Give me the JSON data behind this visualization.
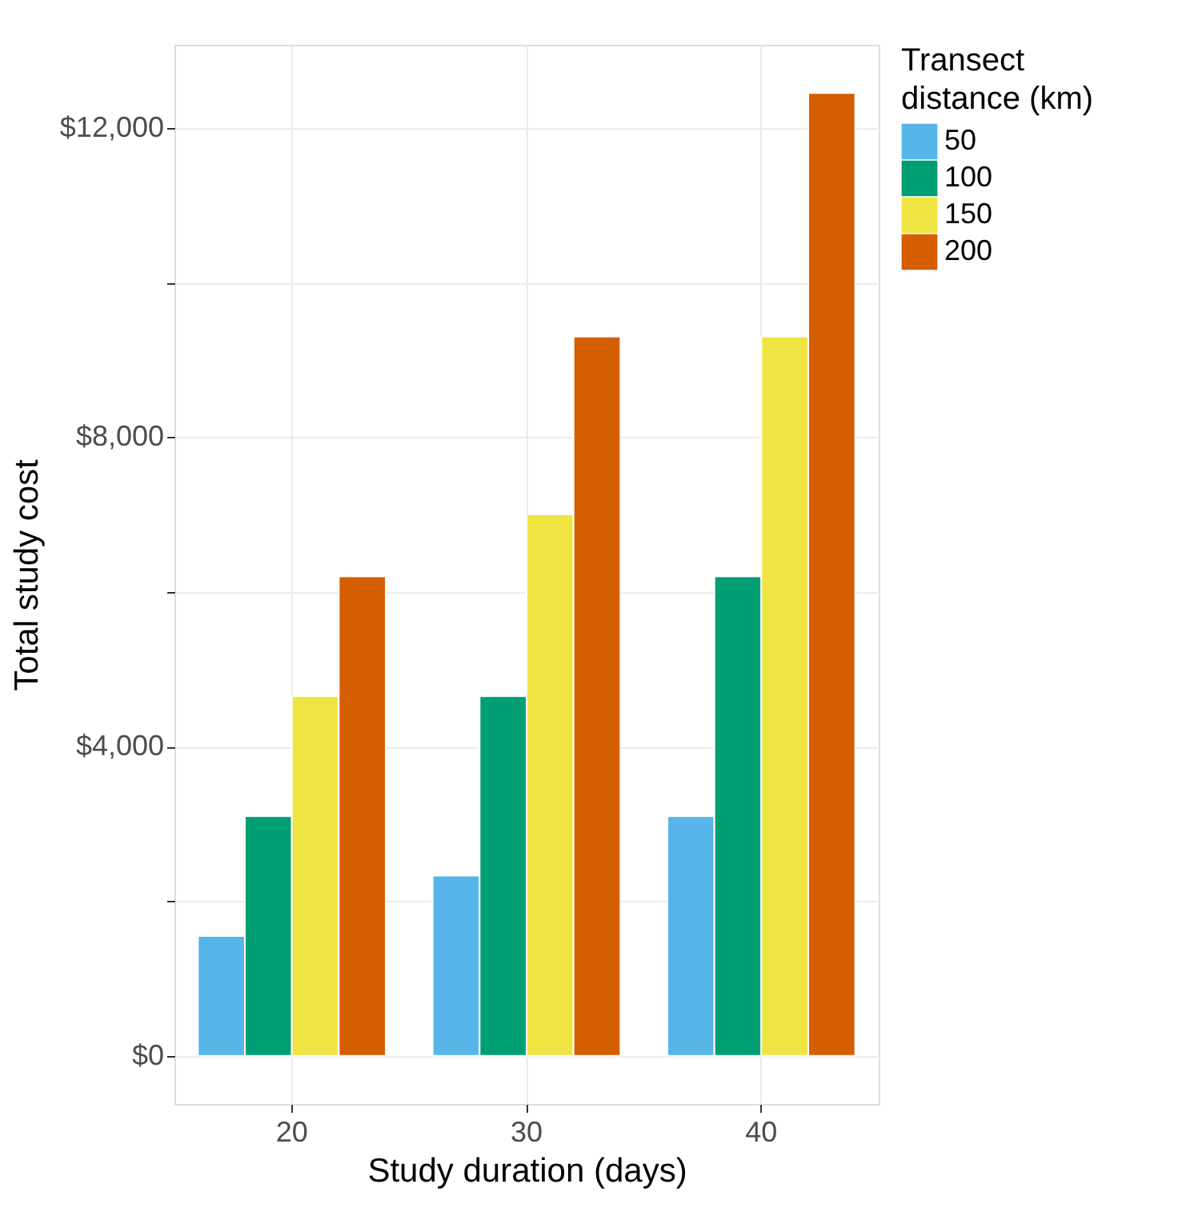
{
  "chart_data": {
    "type": "bar",
    "xlabel": "Study duration (days)",
    "ylabel": "Total study cost",
    "legend_title": "Transect distance (km)",
    "categories": [
      "20",
      "30",
      "40"
    ],
    "series": [
      {
        "name": "50",
        "color": "#56b4e9",
        "values": [
          1550,
          2330,
          3100
        ]
      },
      {
        "name": "100",
        "color": "#009e73",
        "values": [
          3100,
          4650,
          6200
        ]
      },
      {
        "name": "150",
        "color": "#f0e442",
        "values": [
          4650,
          7000,
          9300
        ]
      },
      {
        "name": "200",
        "color": "#d55e00",
        "values": [
          6200,
          9300,
          12450
        ]
      }
    ],
    "ylim": [
      -622,
      13072
    ],
    "yticks": [
      {
        "value": 0,
        "label": "$0"
      },
      {
        "value": 2000,
        "label": null
      },
      {
        "value": 4000,
        "label": "$4,000"
      },
      {
        "value": 6000,
        "label": null
      },
      {
        "value": 8000,
        "label": "$8,000"
      },
      {
        "value": 10000,
        "label": null
      },
      {
        "value": 12000,
        "label": "$12,000"
      }
    ],
    "grid": true,
    "legend": "right"
  }
}
